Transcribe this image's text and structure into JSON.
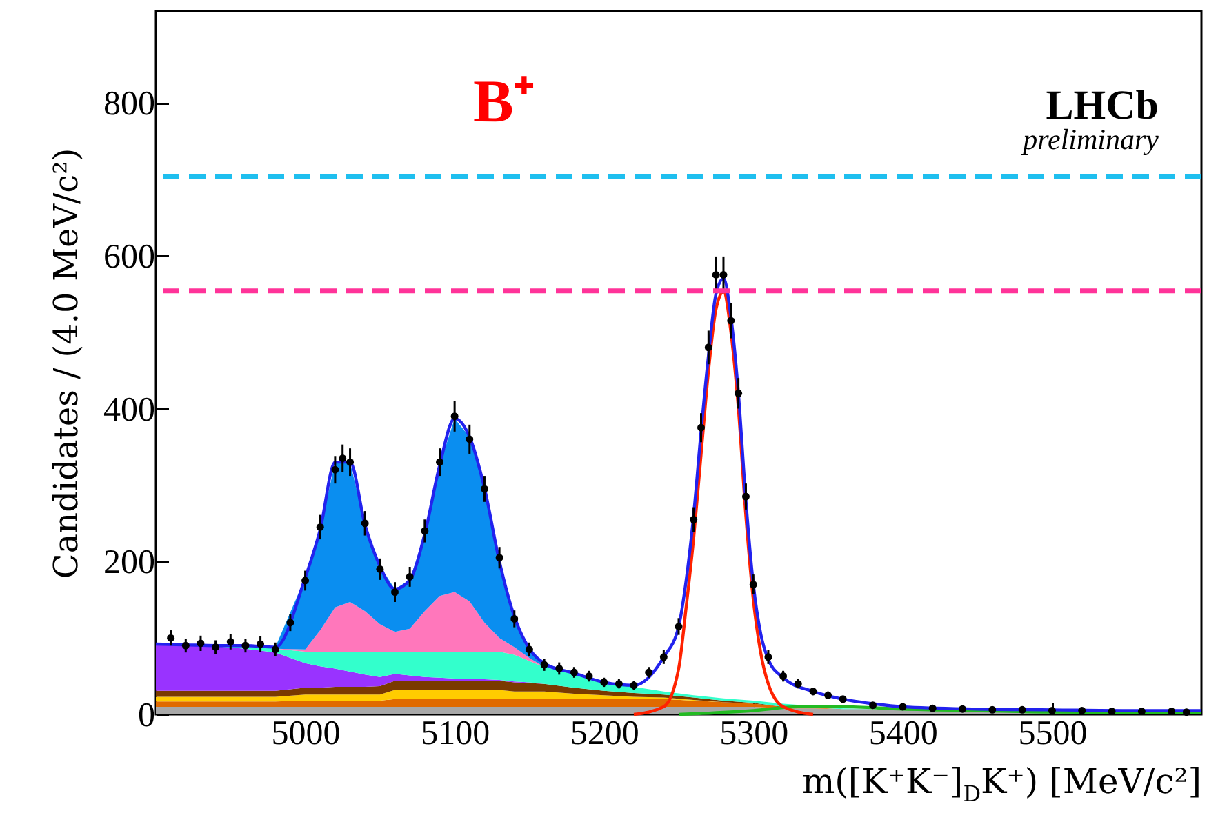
{
  "chart_data": {
    "type": "area",
    "stacked": true,
    "xlabel": "m([K⁺K⁻]$_{D}$K⁺) [MeV/c²]",
    "ylabel": "Candidates / (4.0 MeV/c²)",
    "annotations": [
      "B⁺",
      "LHCb",
      "preliminary"
    ],
    "xlim": [
      4900,
      5600
    ],
    "xticks": [
      5000,
      5100,
      5200,
      5300,
      5400,
      5500
    ],
    "ylim": [
      0,
      920
    ],
    "yticks": [
      0,
      200,
      400,
      600,
      800
    ],
    "grid": false,
    "x": [
      4900,
      4920,
      4940,
      4960,
      4980,
      5000,
      5010,
      5020,
      5030,
      5040,
      5050,
      5060,
      5070,
      5080,
      5090,
      5100,
      5110,
      5120,
      5130,
      5140,
      5150,
      5160,
      5180,
      5200,
      5220,
      5240,
      5260,
      5280,
      5300,
      5320,
      5340,
      5360,
      5380,
      5400,
      5450,
      5500,
      5550,
      5600
    ],
    "series": [
      {
        "color": "#a8a8a8",
        "values": [
          10,
          10,
          10,
          10,
          10,
          10,
          10,
          10,
          10,
          10,
          10,
          10,
          10,
          10,
          10,
          10,
          10,
          10,
          10,
          10,
          10,
          10,
          10,
          10,
          10,
          10,
          10,
          10,
          10,
          8,
          8,
          7,
          7,
          6,
          5,
          5,
          4,
          4
        ]
      },
      {
        "color": "#e06a00",
        "values": [
          7,
          7,
          7,
          7,
          7,
          8,
          8,
          8,
          8,
          8,
          8,
          10,
          10,
          10,
          10,
          10,
          10,
          10,
          10,
          10,
          10,
          10,
          10,
          10,
          10,
          10,
          8,
          6,
          4,
          2,
          1,
          0,
          null,
          null,
          null,
          null,
          null,
          null
        ]
      },
      {
        "color": "#ffcc00",
        "values": [
          6,
          6,
          6,
          6,
          6,
          8,
          8,
          8,
          8,
          8,
          8,
          12,
          12,
          12,
          12,
          12,
          12,
          12,
          12,
          10,
          10,
          10,
          7,
          5,
          3,
          2,
          1,
          0,
          null,
          null,
          null,
          null,
          null,
          null,
          null,
          null,
          null,
          null
        ]
      },
      {
        "color": "#7a3a00",
        "values": [
          8,
          8,
          8,
          8,
          8,
          9,
          9,
          10,
          10,
          10,
          11,
          12,
          12,
          12,
          12,
          12,
          12,
          12,
          12,
          12,
          11,
          10,
          8,
          6,
          5,
          4,
          3,
          2,
          1,
          0,
          null,
          null,
          null,
          null,
          null,
          null,
          null,
          null
        ]
      },
      {
        "color": "#9933ff",
        "values": [
          61,
          60,
          58,
          55,
          50,
          32,
          28,
          24,
          20,
          16,
          12,
          9,
          7,
          5,
          4,
          3,
          2,
          2,
          1,
          1,
          1,
          0,
          null,
          null,
          null,
          null,
          null,
          null,
          null,
          null,
          null,
          null,
          null,
          null,
          null,
          null,
          null,
          null
        ]
      },
      {
        "color": "#33ffcc",
        "values": [
          null,
          0,
          1,
          3,
          5,
          15,
          19,
          22,
          26,
          30,
          33,
          29,
          31,
          33,
          34,
          35,
          36,
          36,
          37,
          35,
          28,
          22,
          17,
          11,
          8,
          4,
          3,
          3,
          3,
          4,
          2,
          1,
          0,
          null,
          null,
          null,
          null,
          null
        ]
      },
      {
        "color": "#ff77bb",
        "values": [
          null,
          null,
          null,
          null,
          0,
          3,
          28,
          58,
          65,
          53,
          36,
          26,
          30,
          53,
          73,
          78,
          66,
          38,
          18,
          10,
          4,
          0,
          null,
          null,
          null,
          null,
          null,
          null,
          null,
          null,
          null,
          null,
          null,
          null,
          null,
          null,
          null,
          null
        ]
      },
      {
        "color": "#0a8ef0",
        "values": [
          null,
          null,
          null,
          0,
          2,
          94,
          132,
          190,
          183,
          113,
          76,
          56,
          64,
          101,
          171,
          227,
          215,
          176,
          100,
          40,
          12,
          5,
          2,
          0,
          null,
          null,
          null,
          null,
          null,
          null,
          null,
          null,
          null,
          null,
          null,
          null,
          null,
          null
        ]
      },
      {
        "type": "line",
        "color": "#22bb22",
        "x": [
          5250,
          5300,
          5330,
          5360,
          5400,
          5450,
          5500,
          5600
        ],
        "values": [
          0,
          5,
          10,
          10,
          7,
          5,
          3,
          2
        ]
      },
      {
        "type": "line",
        "color": "#ff2200",
        "x": [
          5220,
          5240,
          5250,
          5255,
          5260,
          5265,
          5270,
          5275,
          5280,
          5285,
          5290,
          5295,
          5300,
          5305,
          5310,
          5320,
          5340
        ],
        "values": [
          0,
          10,
          60,
          140,
          230,
          340,
          450,
          530,
          553,
          500,
          400,
          260,
          150,
          80,
          40,
          10,
          0
        ]
      },
      {
        "type": "line",
        "color": "#2222ee",
        "x": [
          4900,
          4920,
          4940,
          4960,
          4980,
          5000,
          5010,
          5020,
          5030,
          5040,
          5050,
          5060,
          5070,
          5080,
          5090,
          5100,
          5110,
          5120,
          5130,
          5140,
          5150,
          5160,
          5180,
          5200,
          5220,
          5240,
          5250,
          5255,
          5260,
          5265,
          5270,
          5275,
          5280,
          5285,
          5290,
          5295,
          5300,
          5305,
          5310,
          5320,
          5340,
          5360,
          5380,
          5400,
          5450,
          5500,
          5550,
          5600
        ],
        "values": [
          92,
          91,
          90,
          90,
          88,
          179,
          242,
          330,
          330,
          248,
          194,
          164,
          176,
          236,
          326,
          387,
          363,
          296,
          200,
          128,
          86,
          67,
          54,
          42,
          38,
          75,
          115,
          175,
          260,
          370,
          470,
          550,
          570,
          520,
          420,
          280,
          170,
          105,
          72,
          48,
          30,
          20,
          14,
          10,
          7,
          6,
          5,
          5
        ]
      },
      {
        "type": "scatter",
        "color": "#000000",
        "marker": "circle",
        "x": [
          4910,
          4920,
          4930,
          4940,
          4950,
          4960,
          4970,
          4980,
          4990,
          5000,
          5010,
          5020,
          5025,
          5030,
          5040,
          5050,
          5060,
          5070,
          5080,
          5090,
          5100,
          5110,
          5120,
          5130,
          5140,
          5150,
          5160,
          5170,
          5180,
          5190,
          5200,
          5210,
          5220,
          5230,
          5240,
          5250,
          5260,
          5265,
          5270,
          5275,
          5280,
          5285,
          5290,
          5295,
          5300,
          5310,
          5320,
          5330,
          5340,
          5350,
          5360,
          5380,
          5400,
          5420,
          5440,
          5460,
          5480,
          5500,
          5520,
          5540,
          5560,
          5580,
          5590
        ],
        "values": [
          100,
          90,
          93,
          88,
          95,
          90,
          92,
          85,
          120,
          175,
          245,
          320,
          335,
          330,
          250,
          190,
          160,
          180,
          240,
          330,
          390,
          360,
          295,
          205,
          125,
          85,
          65,
          60,
          55,
          50,
          42,
          40,
          38,
          55,
          75,
          115,
          255,
          375,
          480,
          575,
          575,
          515,
          420,
          285,
          170,
          75,
          50,
          40,
          30,
          25,
          20,
          12,
          10,
          8,
          7,
          6,
          6,
          5,
          5,
          4,
          4,
          4,
          3
        ],
        "errors": [
          10,
          9,
          10,
          9,
          10,
          9,
          10,
          9,
          11,
          13,
          16,
          18,
          18,
          18,
          16,
          14,
          13,
          13,
          15,
          18,
          20,
          19,
          17,
          14,
          11,
          9,
          8,
          8,
          7,
          7,
          6,
          6,
          6,
          7,
          9,
          11,
          16,
          19,
          22,
          24,
          24,
          23,
          20,
          17,
          13,
          9,
          7,
          6,
          5,
          5,
          4,
          3,
          3,
          3,
          3,
          2,
          2,
          2,
          2,
          2,
          2,
          2,
          2
        ]
      }
    ],
    "ref_lines": [
      {
        "axis": "y",
        "value": 704,
        "color": "#1fbfef",
        "line_style": "dashed"
      },
      {
        "axis": "y",
        "value": 554,
        "color": "#ff3399",
        "line_style": "dashed"
      }
    ]
  }
}
